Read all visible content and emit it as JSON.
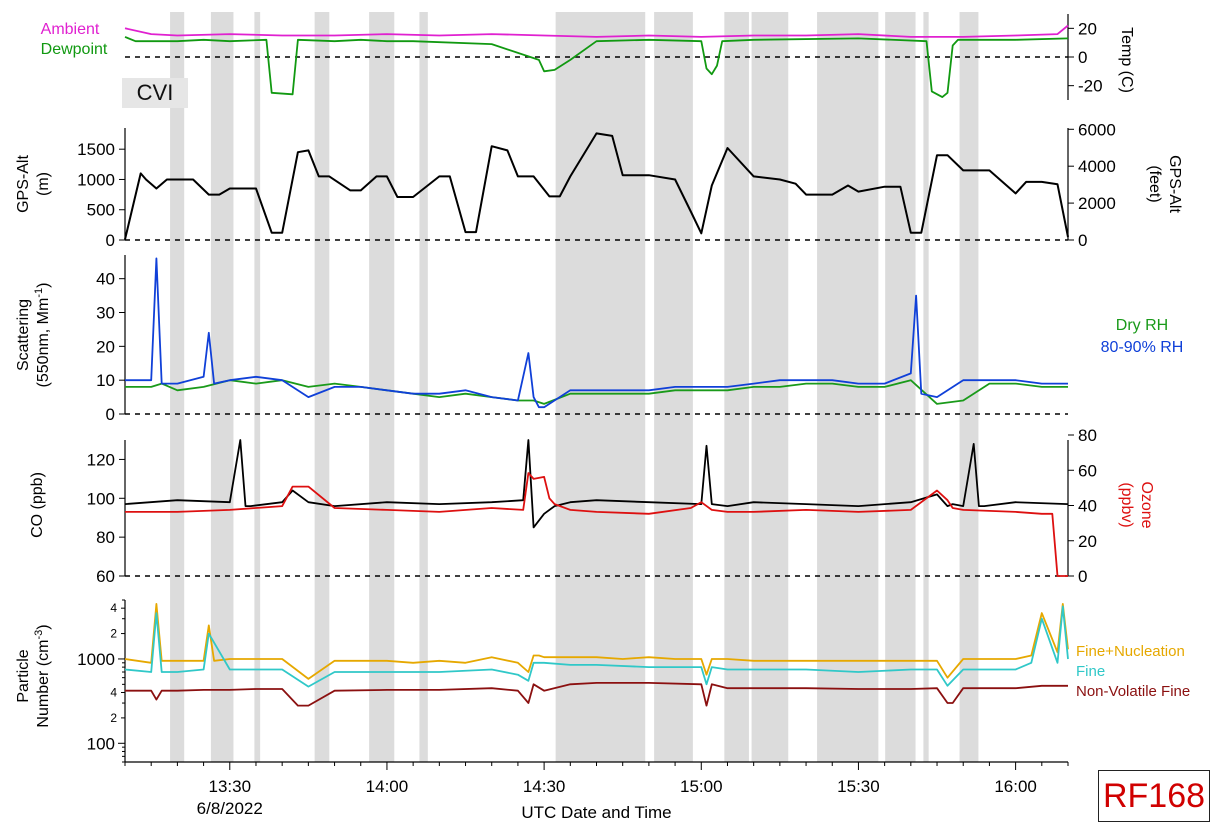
{
  "flight_id": "RF168",
  "cvi_label": "CVI",
  "x_axis": {
    "title": "UTC Date and Time",
    "date_label": "6/8/2022",
    "start_min": 790,
    "end_min": 970,
    "ticks": [
      {
        "min": 810,
        "label": "13:30"
      },
      {
        "min": 840,
        "label": "14:00"
      },
      {
        "min": 870,
        "label": "14:30"
      },
      {
        "min": 900,
        "label": "15:00"
      },
      {
        "min": 930,
        "label": "15:30"
      },
      {
        "min": 960,
        "label": "16:00"
      }
    ]
  },
  "cvi_periods_min": [
    [
      798.6,
      801.3
    ],
    [
      806.4,
      810.7
    ],
    [
      814.7,
      815.8
    ],
    [
      826.2,
      829.0
    ],
    [
      836.6,
      841.4
    ],
    [
      846.2,
      847.8
    ],
    [
      872.2,
      889.3
    ],
    [
      891.0,
      898.4
    ],
    [
      904.4,
      909.1
    ],
    [
      909.6,
      916.6
    ],
    [
      922.1,
      933.8
    ],
    [
      935.1,
      940.9
    ],
    [
      942.4,
      943.4
    ],
    [
      949.3,
      952.9
    ]
  ],
  "chart_data": [
    {
      "type": "line",
      "id": "temperature",
      "ylabel_right": "Temp (C)",
      "ylim": [
        -30,
        30
      ],
      "right_ticks": [
        20,
        0,
        -20
      ],
      "zero_line": true,
      "series": [
        {
          "name": "Ambient",
          "color": "#e020d0",
          "x": [
            790,
            795,
            800,
            810,
            820,
            830,
            840,
            850,
            860,
            870,
            880,
            890,
            900,
            910,
            920,
            930,
            940,
            950,
            960,
            968,
            970
          ],
          "y": [
            20,
            16,
            15,
            16,
            15,
            15,
            16,
            15,
            16,
            15,
            14,
            15,
            14,
            15,
            15,
            16,
            14,
            14,
            15,
            16,
            22
          ]
        },
        {
          "name": "Dewpoint",
          "color": "#119911",
          "x": [
            790,
            792,
            800,
            805,
            810,
            817,
            818,
            822,
            823,
            830,
            835,
            840,
            845,
            860,
            869,
            870,
            872,
            875,
            880,
            890,
            900,
            901,
            902,
            903,
            904,
            910,
            930,
            943,
            944,
            946,
            947,
            948,
            949,
            960,
            970
          ],
          "y": [
            14,
            11,
            11,
            12,
            11,
            12,
            -25,
            -26,
            12,
            11,
            12,
            11,
            11,
            9,
            -2,
            -10,
            -9,
            -2,
            11,
            12,
            11,
            -8,
            -12,
            -6,
            11,
            12,
            13,
            11,
            -24,
            -28,
            -25,
            8,
            12,
            12,
            13
          ]
        }
      ]
    },
    {
      "type": "line",
      "id": "altitude",
      "ylabel_left": "GPS-Alt (m)",
      "ylabel_right": "GPS-Alt (feet)",
      "ylim": [
        0,
        1850
      ],
      "left_ticks": [
        0,
        500,
        1000,
        1500
      ],
      "right_ticks": [
        0,
        2000,
        4000,
        6000
      ],
      "zero_line": true,
      "series": [
        {
          "name": "GPS-Alt",
          "color": "#000000",
          "x": [
            790,
            793,
            794,
            796,
            798,
            800,
            803,
            806,
            808,
            810,
            813,
            815,
            818,
            820,
            823,
            825,
            827,
            829,
            833,
            835,
            838,
            840,
            842,
            845,
            850,
            852,
            855,
            857,
            860,
            863,
            865,
            868,
            871,
            873,
            875,
            880,
            883,
            885,
            890,
            895,
            898,
            900,
            902,
            905,
            910,
            915,
            918,
            920,
            925,
            928,
            930,
            935,
            938,
            940,
            942,
            945,
            947,
            950,
            955,
            960,
            962,
            965,
            968,
            970
          ],
          "y": [
            10,
            1100,
            1000,
            850,
            1000,
            1000,
            1000,
            750,
            750,
            850,
            850,
            850,
            120,
            120,
            1450,
            1480,
            1050,
            1050,
            820,
            820,
            1050,
            1050,
            710,
            710,
            1050,
            1050,
            130,
            130,
            1550,
            1480,
            1050,
            1050,
            720,
            720,
            1050,
            1760,
            1720,
            1070,
            1070,
            1000,
            470,
            110,
            900,
            1520,
            1050,
            1000,
            930,
            750,
            750,
            900,
            800,
            880,
            880,
            120,
            120,
            1400,
            1400,
            1150,
            1150,
            770,
            960,
            960,
            920,
            50
          ]
        }
      ]
    },
    {
      "type": "line",
      "id": "scattering",
      "ylabel_left": "Scattering (550nm, Mm-1)",
      "ylim": [
        0,
        47
      ],
      "left_ticks": [
        0,
        10,
        20,
        30,
        40
      ],
      "zero_line": true,
      "series": [
        {
          "name": "Dry RH",
          "color": "#1a9a1a",
          "x": [
            790,
            795,
            797,
            800,
            805,
            810,
            815,
            820,
            825,
            830,
            835,
            840,
            845,
            850,
            855,
            860,
            865,
            868,
            870,
            875,
            880,
            885,
            890,
            895,
            900,
            905,
            910,
            915,
            920,
            925,
            930,
            935,
            940,
            945,
            950,
            955,
            960,
            965,
            970
          ],
          "y": [
            8,
            8,
            9,
            7,
            8,
            10,
            9,
            10,
            8,
            9,
            8,
            7,
            6,
            5,
            6,
            5,
            4,
            4,
            3,
            6,
            6,
            6,
            6,
            7,
            7,
            7,
            8,
            8,
            9,
            9,
            8,
            8,
            10,
            3,
            4,
            9,
            9,
            8,
            8
          ]
        },
        {
          "name": "80-90% RH",
          "color": "#1040d8",
          "x": [
            790,
            795,
            796,
            797,
            800,
            805,
            806,
            807,
            810,
            815,
            820,
            825,
            830,
            835,
            840,
            845,
            850,
            855,
            860,
            865,
            867,
            868,
            869,
            870,
            875,
            880,
            885,
            890,
            895,
            900,
            905,
            910,
            915,
            920,
            925,
            930,
            935,
            940,
            941,
            942,
            945,
            950,
            955,
            960,
            965,
            970
          ],
          "y": [
            10,
            10,
            46,
            9,
            9,
            11,
            24,
            9,
            10,
            11,
            10,
            5,
            8,
            8,
            7,
            6,
            6,
            7,
            5,
            4,
            18,
            5,
            2,
            2,
            7,
            7,
            7,
            7,
            8,
            8,
            8,
            9,
            10,
            10,
            10,
            9,
            9,
            12,
            35,
            6,
            5,
            10,
            10,
            10,
            9,
            9
          ]
        }
      ]
    },
    {
      "type": "line",
      "id": "co_ozone",
      "ylabel_left": "CO (ppb)",
      "ylabel_right": "Ozone (ppbv)",
      "ylim": [
        60,
        130
      ],
      "left_ticks": [
        60,
        80,
        100,
        120
      ],
      "right_ticks": [
        0,
        20,
        40,
        60,
        80
      ],
      "zero_line": true,
      "series": [
        {
          "name": "CO",
          "color": "#000000",
          "x": [
            790,
            800,
            810,
            812,
            813,
            814,
            820,
            822,
            825,
            830,
            840,
            850,
            860,
            866,
            867,
            868,
            870,
            872,
            875,
            880,
            890,
            900,
            901,
            902,
            905,
            910,
            920,
            930,
            940,
            945,
            947,
            948,
            950,
            952,
            953,
            954,
            960,
            970
          ],
          "y": [
            97,
            99,
            98,
            130,
            96,
            96,
            98,
            104,
            98,
            96,
            98,
            97,
            98,
            99,
            130,
            85,
            92,
            96,
            98,
            99,
            98,
            97,
            127,
            97,
            96,
            98,
            97,
            96,
            98,
            102,
            96,
            97,
            96,
            128,
            96,
            96,
            98,
            97
          ]
        },
        {
          "name": "Ozone",
          "color": "#dd1010",
          "x": [
            790,
            800,
            810,
            820,
            822,
            825,
            830,
            840,
            850,
            860,
            866,
            867,
            868,
            870,
            871,
            872,
            875,
            880,
            890,
            898,
            900,
            902,
            905,
            910,
            920,
            930,
            940,
            945,
            947,
            948,
            950,
            960,
            965,
            967,
            968,
            969,
            970
          ],
          "y": [
            93,
            93,
            94,
            96,
            106,
            106,
            95,
            94,
            93,
            95,
            94,
            113,
            110,
            111,
            100,
            97,
            94,
            93,
            92,
            95,
            98,
            94,
            93,
            93,
            94,
            93,
            94,
            104,
            99,
            95,
            94,
            93,
            92,
            92,
            60,
            60,
            60
          ]
        }
      ]
    },
    {
      "type": "line",
      "id": "particles",
      "ylabel_left": "Particle Number (cm-3)",
      "log_scale": true,
      "ylim": [
        60,
        5000
      ],
      "left_major_ticks": [
        100,
        1000
      ],
      "left_minor_ticks": [
        {
          "v": 200,
          "label": "2"
        },
        {
          "v": 400,
          "label": "4"
        },
        {
          "v": 2000,
          "label": "2"
        },
        {
          "v": 4000,
          "label": "4"
        }
      ],
      "series": [
        {
          "name": "Fine+Nucleation",
          "color": "#e6a800",
          "x": [
            790,
            795,
            796,
            797,
            800,
            805,
            806,
            807,
            810,
            815,
            820,
            825,
            830,
            835,
            840,
            845,
            850,
            855,
            860,
            865,
            867,
            868,
            869,
            870,
            875,
            880,
            885,
            890,
            895,
            900,
            901,
            902,
            905,
            910,
            920,
            930,
            940,
            945,
            947,
            950,
            955,
            960,
            963,
            965,
            968,
            969,
            970
          ],
          "y": [
            1000,
            900,
            4500,
            950,
            950,
            950,
            2500,
            950,
            1000,
            1000,
            1000,
            580,
            950,
            950,
            950,
            900,
            950,
            900,
            1050,
            900,
            700,
            1100,
            1100,
            1050,
            1050,
            1050,
            1000,
            1050,
            1000,
            1000,
            650,
            1000,
            1000,
            950,
            950,
            950,
            950,
            950,
            600,
            1000,
            1000,
            1000,
            1100,
            3500,
            1200,
            4500,
            1300
          ]
        },
        {
          "name": "Fine",
          "color": "#30c8c8",
          "x": [
            790,
            795,
            796,
            797,
            800,
            805,
            806,
            810,
            815,
            820,
            825,
            830,
            840,
            850,
            860,
            865,
            867,
            868,
            870,
            875,
            880,
            890,
            900,
            901,
            902,
            905,
            910,
            920,
            930,
            940,
            945,
            947,
            950,
            960,
            963,
            965,
            968,
            969,
            970
          ],
          "y": [
            750,
            700,
            3500,
            700,
            700,
            750,
            2000,
            750,
            750,
            750,
            470,
            700,
            700,
            700,
            750,
            650,
            550,
            900,
            900,
            850,
            850,
            800,
            800,
            500,
            800,
            750,
            750,
            750,
            700,
            750,
            750,
            480,
            750,
            750,
            900,
            3000,
            900,
            4200,
            1000
          ]
        },
        {
          "name": "Non-Volatile Fine",
          "color": "#8b1010",
          "x": [
            790,
            795,
            796,
            797,
            800,
            805,
            810,
            815,
            820,
            823,
            825,
            830,
            840,
            850,
            860,
            865,
            867,
            868,
            870,
            875,
            880,
            890,
            900,
            901,
            902,
            905,
            910,
            920,
            930,
            940,
            945,
            947,
            948,
            950,
            960,
            965,
            970
          ],
          "y": [
            420,
            420,
            330,
            420,
            420,
            430,
            430,
            440,
            440,
            280,
            280,
            420,
            430,
            430,
            450,
            420,
            300,
            500,
            420,
            500,
            520,
            520,
            500,
            280,
            500,
            450,
            450,
            450,
            440,
            440,
            450,
            300,
            300,
            450,
            450,
            480,
            480
          ]
        }
      ]
    }
  ]
}
